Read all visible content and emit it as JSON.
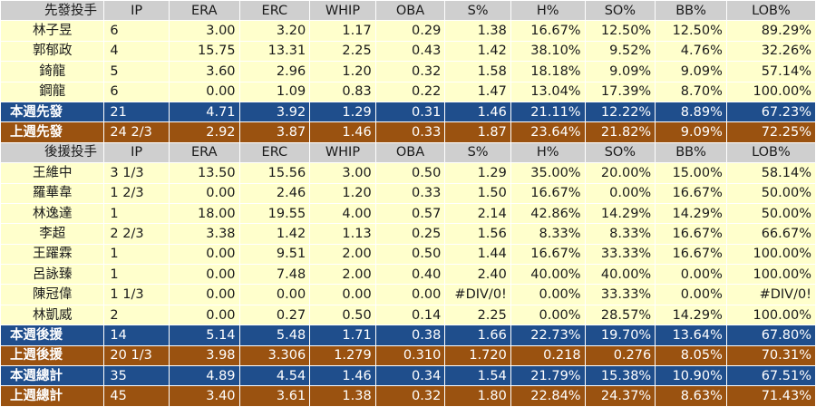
{
  "starters": {
    "header": [
      "先發投手",
      "IP",
      "ERA",
      "ERC",
      "WHIP",
      "OBA",
      "S%",
      "H%",
      "SO%",
      "BB%",
      "LOB%"
    ],
    "players": [
      [
        "林子昱",
        "6",
        "3.00",
        "3.20",
        "1.17",
        "0.29",
        "1.38",
        "16.67%",
        "12.50%",
        "12.50%",
        "89.29%"
      ],
      [
        "郭郁政",
        "4",
        "15.75",
        "13.31",
        "2.25",
        "0.43",
        "1.42",
        "38.10%",
        "9.52%",
        "4.76%",
        "32.26%"
      ],
      [
        "錡龍",
        "5",
        "3.60",
        "2.96",
        "1.20",
        "0.32",
        "1.58",
        "18.18%",
        "9.09%",
        "9.09%",
        "57.14%"
      ],
      [
        "鋼龍",
        "6",
        "0.00",
        "1.09",
        "0.83",
        "0.22",
        "1.47",
        "13.04%",
        "17.39%",
        "8.70%",
        "100.00%"
      ]
    ],
    "this_week": [
      "本週先發",
      "21",
      "4.71",
      "3.92",
      "1.29",
      "0.31",
      "1.46",
      "21.11%",
      "12.22%",
      "8.89%",
      "67.23%"
    ],
    "last_week": [
      "上週先發",
      "24 2/3",
      "2.92",
      "3.87",
      "1.46",
      "0.33",
      "1.87",
      "23.64%",
      "21.82%",
      "9.09%",
      "72.25%"
    ]
  },
  "relievers": {
    "header": [
      "後援投手",
      "IP",
      "ERA",
      "ERC",
      "WHIP",
      "OBA",
      "S%",
      "H%",
      "SO%",
      "BB%",
      "LOB%"
    ],
    "players": [
      [
        "王維中",
        "3 1/3",
        "13.50",
        "15.56",
        "3.00",
        "0.50",
        "1.29",
        "35.00%",
        "20.00%",
        "15.00%",
        "58.14%"
      ],
      [
        "羅華韋",
        "1 2/3",
        "0.00",
        "2.46",
        "1.20",
        "0.33",
        "1.50",
        "16.67%",
        "0.00%",
        "16.67%",
        "50.00%"
      ],
      [
        "林逸達",
        "1",
        "18.00",
        "19.55",
        "4.00",
        "0.57",
        "2.14",
        "42.86%",
        "14.29%",
        "14.29%",
        "50.00%"
      ],
      [
        "李超",
        "2 2/3",
        "3.38",
        "1.42",
        "1.13",
        "0.25",
        "1.56",
        "8.33%",
        "8.33%",
        "16.67%",
        "66.67%"
      ],
      [
        "王躍霖",
        "1",
        "0.00",
        "9.51",
        "2.00",
        "0.50",
        "1.44",
        "16.67%",
        "33.33%",
        "16.67%",
        "100.00%"
      ],
      [
        "呂詠臻",
        "1",
        "0.00",
        "7.48",
        "2.00",
        "0.40",
        "2.40",
        "40.00%",
        "40.00%",
        "0.00%",
        "100.00%"
      ],
      [
        "陳冠偉",
        "1 1/3",
        "0.00",
        "0.00",
        "0.00",
        "0.00",
        "#DIV/0!",
        "0.00%",
        "33.33%",
        "0.00%",
        "#DIV/0!"
      ],
      [
        "林凱威",
        "2",
        "0.00",
        "0.27",
        "0.50",
        "0.14",
        "2.25",
        "0.00%",
        "28.57%",
        "14.29%",
        "100.00%"
      ]
    ],
    "this_week": [
      "本週後援",
      "14",
      "5.14",
      "5.48",
      "1.71",
      "0.38",
      "1.66",
      "22.73%",
      "19.70%",
      "13.64%",
      "67.80%"
    ],
    "last_week": [
      "上週後援",
      "20 1/3",
      "3.98",
      "3.306",
      "1.279",
      "0.310",
      "1.720",
      "0.218",
      "0.276",
      "8.05%",
      "70.31%"
    ]
  },
  "totals": {
    "this_week": [
      "本週總計",
      "35",
      "4.89",
      "4.54",
      "1.46",
      "0.34",
      "1.54",
      "21.79%",
      "15.38%",
      "10.90%",
      "67.51%"
    ],
    "last_week": [
      "上週總計",
      "45",
      "3.40",
      "3.61",
      "1.38",
      "0.32",
      "1.80",
      "22.84%",
      "24.37%",
      "8.63%",
      "71.43%"
    ]
  },
  "colors": {
    "header_bg": "#cfcfcf",
    "player_bg": "#ffffcc",
    "this_week_bg": "#1f4e8c",
    "last_week_bg": "#9a5210"
  }
}
